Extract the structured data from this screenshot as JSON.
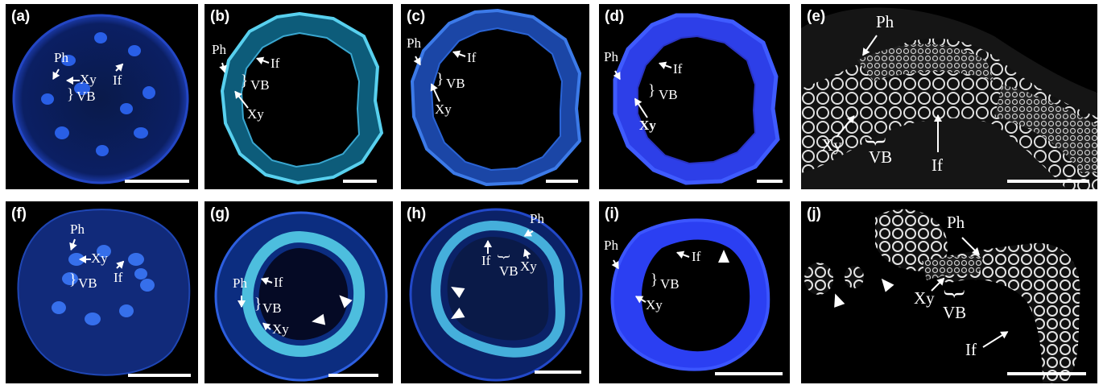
{
  "panels": [
    {
      "id": "a",
      "label": "(a)",
      "tone": "blue"
    },
    {
      "id": "b",
      "label": "(b)",
      "tone": "cyan"
    },
    {
      "id": "c",
      "label": "(c)",
      "tone": "blue"
    },
    {
      "id": "d",
      "label": "(d)",
      "tone": "deep-blue"
    },
    {
      "id": "e",
      "label": "(e)",
      "tone": "grayscale"
    },
    {
      "id": "f",
      "label": "(f)",
      "tone": "blue"
    },
    {
      "id": "g",
      "label": "(g)",
      "tone": "cyan"
    },
    {
      "id": "h",
      "label": "(h)",
      "tone": "cyan"
    },
    {
      "id": "i",
      "label": "(i)",
      "tone": "deep-blue"
    },
    {
      "id": "j",
      "label": "(j)",
      "tone": "grayscale"
    }
  ],
  "annotations": {
    "ph": "Ph",
    "xy": "Xy",
    "if": "If",
    "vb": "VB",
    "brace": "}"
  },
  "colors": {
    "blue": "#2a59d6",
    "cyan": "#4fb9e0",
    "deep_blue": "#2b3df0",
    "gray": "#d8d8d8",
    "background": "#000000"
  }
}
